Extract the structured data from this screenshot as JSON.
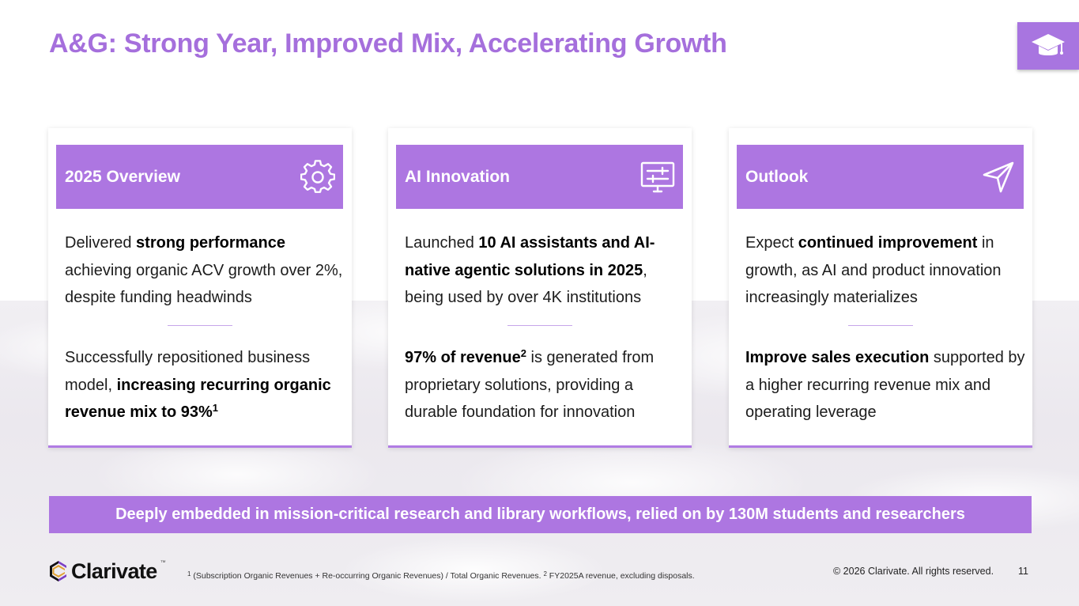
{
  "slide": {
    "title": "A&G: Strong Year, Improved Mix, Accelerating Growth",
    "corner_icon": "graduation-cap-icon"
  },
  "cards": [
    {
      "title": "2025 Overview",
      "icon": "gear-icon",
      "p1": {
        "t1": "Delivered ",
        "b1": "strong performance",
        "t2": " achieving organic ACV growth over 2%, despite funding headwinds"
      },
      "p2": {
        "t1": "Successfully repositioned business model, ",
        "b1": "increasing recurring organic revenue mix to 93%",
        "sup": "1",
        "t2": ""
      }
    },
    {
      "title": "AI Innovation",
      "icon": "monitor-settings-icon",
      "p1": {
        "t1": "Launched ",
        "b1": "10 AI assistants and AI-native agentic solutions in 2025",
        "t2": ", being used by over 4K institutions"
      },
      "p2": {
        "t1": "",
        "b1": "97% of revenue",
        "sup": "2",
        "t2": " is generated from proprietary solutions, providing a durable foundation for innovation"
      }
    },
    {
      "title": "Outlook",
      "icon": "send-arrow-icon",
      "p1": {
        "t1": "Expect ",
        "b1": "continued improvement",
        "t2": " in growth, as AI and product innovation increasingly materializes"
      },
      "p2": {
        "t1": "",
        "b1": "Improve sales execution",
        "sup": "",
        "t2": " supported by a higher recurring revenue mix and operating leverage"
      }
    }
  ],
  "banner": "Deeply embedded in mission-critical research and library workflows, relied on by 130M students and researchers",
  "footer": {
    "logo_text": "Clarivate",
    "logo_tm": "™",
    "footnote1_mark": "1",
    "footnote1": " (Subscription Organic Revenues + Re-occurring Organic Revenues) / Total Organic Revenues.  ",
    "footnote2_mark": "2",
    "footnote2": " FY2025A revenue, excluding disposals.",
    "copyright": "© 2026 Clarivate. All rights reserved.",
    "page_number": "11"
  },
  "colors": {
    "accent": "#ad76e1",
    "title": "#a56fdc"
  }
}
